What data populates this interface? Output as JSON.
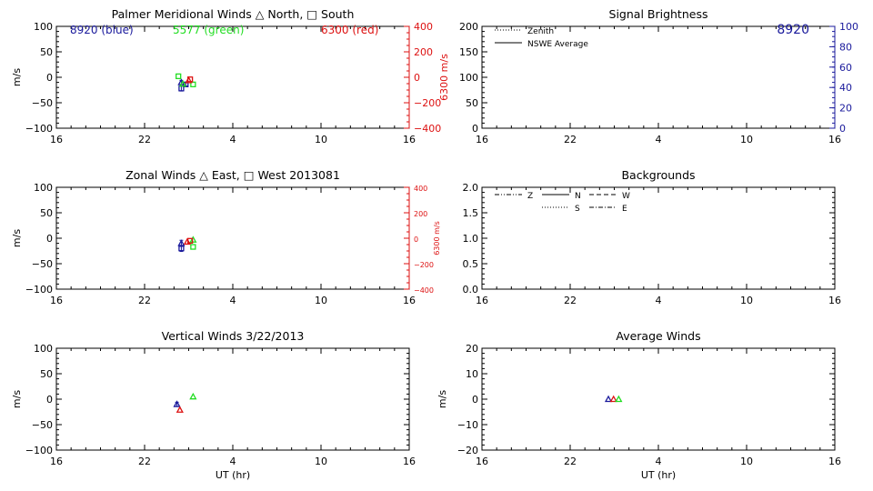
{
  "colors": {
    "blue": "#1a1a9c",
    "green": "#22dd22",
    "red": "#dd1111",
    "axis": "#000000"
  },
  "chart_data": [
    {
      "id": "meridional",
      "type": "scatter",
      "title": "Palmer Meridional Winds △ North, □ South",
      "xlabel": "",
      "ylabel": "m/s",
      "xlim": [
        16,
        40
      ],
      "xticks": [
        16,
        22,
        28,
        34,
        40
      ],
      "xticklabels": [
        "16",
        "22",
        "4",
        "10",
        "16"
      ],
      "ylim": [
        -100,
        100
      ],
      "yticks": [
        -100,
        -50,
        0,
        50,
        100
      ],
      "yticklabels": [
        "−100",
        "−50",
        "0",
        "50",
        "100"
      ],
      "y2label": "6300 m/s",
      "y2lim": [
        -400,
        400
      ],
      "y2ticks": [
        -400,
        -200,
        0,
        200,
        400
      ],
      "y2ticklabels": [
        "−400",
        "−200",
        "0",
        "200",
        "400"
      ],
      "y2color": "red",
      "legend_text": [
        {
          "text": "8920 (blue)",
          "color": "blue",
          "position": "top-left"
        },
        {
          "text": "5577 (green)",
          "color": "green",
          "position": "top-center"
        },
        {
          "text": "6300 (red)",
          "color": "red",
          "position": "top-right"
        }
      ],
      "series": [
        {
          "color": "blue",
          "points": [
            {
              "x": 24.5,
              "y": -10,
              "marker": "triangle",
              "err": 4
            },
            {
              "x": 24.5,
              "y": -22,
              "marker": "square",
              "err": 5
            },
            {
              "x": 24.8,
              "y": -14,
              "marker": "square",
              "err": 3
            }
          ]
        },
        {
          "color": "green",
          "points": [
            {
              "x": 24.3,
              "y": 2,
              "marker": "square",
              "err": 0
            },
            {
              "x": 24.6,
              "y": -13,
              "marker": "triangle",
              "err": 0
            },
            {
              "x": 25.3,
              "y": -14,
              "marker": "square",
              "err": 0
            }
          ]
        },
        {
          "color": "red",
          "points": [
            {
              "x": 25.0,
              "y": -6,
              "marker": "triangle",
              "err": 0
            },
            {
              "x": 25.1,
              "y": -4,
              "marker": "square",
              "err": 0
            }
          ]
        }
      ]
    },
    {
      "id": "zonal",
      "type": "scatter",
      "title": "Zonal Winds △ East, □ West 2013081",
      "xlabel": "",
      "ylabel": "m/s",
      "xlim": [
        16,
        40
      ],
      "xticks": [
        16,
        22,
        28,
        34,
        40
      ],
      "xticklabels": [
        "16",
        "22",
        "4",
        "10",
        "16"
      ],
      "ylim": [
        -100,
        100
      ],
      "yticks": [
        -100,
        -50,
        0,
        50,
        100
      ],
      "yticklabels": [
        "−100",
        "−50",
        "0",
        "50",
        "100"
      ],
      "y2label": "6300 m/s",
      "y2lim": [
        -400,
        400
      ],
      "y2ticks": [
        -400,
        -200,
        0,
        200,
        400
      ],
      "y2ticklabels": [
        "−400",
        "−200",
        "0",
        "200",
        "400"
      ],
      "y2color": "red",
      "series": [
        {
          "color": "blue",
          "points": [
            {
              "x": 24.5,
              "y": -10,
              "marker": "triangle",
              "err": 6
            },
            {
              "x": 24.5,
              "y": -20,
              "marker": "square",
              "err": 6
            }
          ]
        },
        {
          "color": "green",
          "points": [
            {
              "x": 25.3,
              "y": -3,
              "marker": "triangle",
              "err": 0
            },
            {
              "x": 25.3,
              "y": -17,
              "marker": "square",
              "err": 0
            }
          ]
        },
        {
          "color": "red",
          "points": [
            {
              "x": 24.9,
              "y": -7,
              "marker": "triangle",
              "err": 0
            },
            {
              "x": 25.1,
              "y": -5,
              "marker": "square",
              "err": 0
            }
          ]
        }
      ]
    },
    {
      "id": "vertical",
      "type": "scatter",
      "title": "Vertical Winds 3/22/2013",
      "xlabel": "UT (hr)",
      "ylabel": "m/s",
      "xlim": [
        16,
        40
      ],
      "xticks": [
        16,
        22,
        28,
        34,
        40
      ],
      "xticklabels": [
        "16",
        "22",
        "4",
        "10",
        "16"
      ],
      "ylim": [
        -100,
        100
      ],
      "yticks": [
        -100,
        -50,
        0,
        50,
        100
      ],
      "yticklabels": [
        "−100",
        "−50",
        "0",
        "50",
        "100"
      ],
      "series": [
        {
          "color": "blue",
          "points": [
            {
              "x": 24.2,
              "y": -10,
              "marker": "triangle",
              "err": 4
            }
          ]
        },
        {
          "color": "green",
          "points": [
            {
              "x": 25.3,
              "y": 5,
              "marker": "triangle",
              "err": 0
            }
          ]
        },
        {
          "color": "red",
          "points": [
            {
              "x": 24.4,
              "y": -21,
              "marker": "triangle",
              "err": 0
            }
          ]
        }
      ]
    },
    {
      "id": "brightness",
      "type": "line",
      "title": "Signal Brightness",
      "xlabel": "",
      "ylabel": "",
      "xlim": [
        16,
        40
      ],
      "xticks": [
        16,
        22,
        28,
        34,
        40
      ],
      "xticklabels": [
        "16",
        "22",
        "4",
        "10",
        "16"
      ],
      "ylim": [
        0,
        200
      ],
      "yticks": [
        0,
        50,
        100,
        150,
        200
      ],
      "yticklabels": [
        "0",
        "50",
        "100",
        "150",
        "200"
      ],
      "y2lim": [
        0,
        100
      ],
      "y2ticks": [
        0,
        20,
        40,
        60,
        80,
        100
      ],
      "y2ticklabels": [
        "0",
        "20",
        "40",
        "60",
        "80",
        "100"
      ],
      "y2color": "blue",
      "corner_label": {
        "text": "8920",
        "color": "blue"
      },
      "legend": [
        {
          "label": "Zenith",
          "dash": "dotted"
        },
        {
          "label": "NSWE Average",
          "dash": "solid"
        }
      ],
      "series": []
    },
    {
      "id": "backgrounds",
      "type": "line",
      "title": "Backgrounds",
      "xlabel": "",
      "ylabel": "",
      "xlim": [
        16,
        40
      ],
      "xticks": [
        16,
        22,
        28,
        34,
        40
      ],
      "xticklabels": [
        "16",
        "22",
        "4",
        "10",
        "16"
      ],
      "ylim": [
        0,
        2
      ],
      "yticks": [
        0,
        0.5,
        1,
        1.5,
        2
      ],
      "yticklabels": [
        "0.0",
        "0.5",
        "1.0",
        "1.5",
        "2.0"
      ],
      "legend": [
        {
          "label": "Z",
          "dash": "dashdotdot"
        },
        {
          "label": "N",
          "dash": "solid"
        },
        {
          "label": "W",
          "dash": "dashed"
        },
        {
          "label": "S",
          "dash": "dotted"
        },
        {
          "label": "E",
          "dash": "dashdot"
        }
      ],
      "series": []
    },
    {
      "id": "average",
      "type": "scatter",
      "title": "Average Winds",
      "xlabel": "UT (hr)",
      "ylabel": "m/s",
      "xlim": [
        16,
        40
      ],
      "xticks": [
        16,
        22,
        28,
        34,
        40
      ],
      "xticklabels": [
        "16",
        "22",
        "4",
        "10",
        "16"
      ],
      "ylim": [
        -20,
        20
      ],
      "yticks": [
        -20,
        -10,
        0,
        10,
        20
      ],
      "yticklabels": [
        "−20",
        "−10",
        "0",
        "10",
        "20"
      ],
      "series": [
        {
          "color": "blue",
          "points": [
            {
              "x": 24.6,
              "y": 0,
              "marker": "triangle",
              "err": 0
            }
          ]
        },
        {
          "color": "red",
          "points": [
            {
              "x": 24.95,
              "y": 0,
              "marker": "triangle",
              "err": 0
            }
          ]
        },
        {
          "color": "green",
          "points": [
            {
              "x": 25.3,
              "y": 0,
              "marker": "triangle",
              "err": 0
            }
          ]
        }
      ]
    }
  ]
}
